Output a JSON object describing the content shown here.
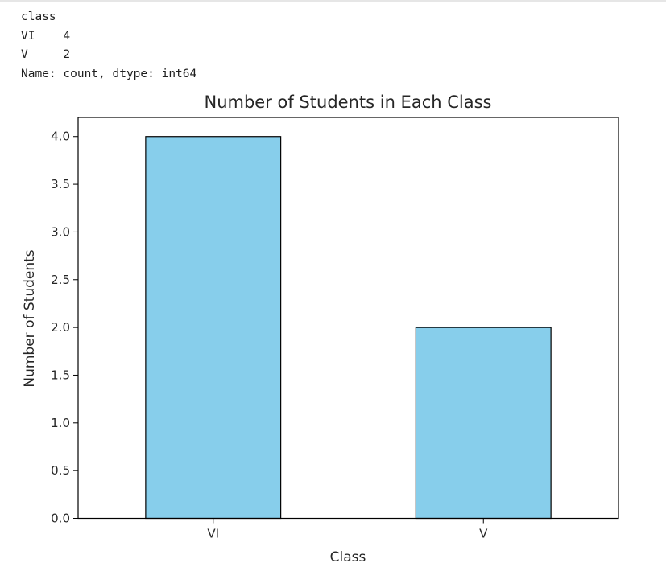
{
  "output": {
    "lines": [
      "class",
      "VI    4",
      "V     2",
      "Name: count, dtype: int64"
    ]
  },
  "chart_data": {
    "type": "bar",
    "title": "Number of Students in Each Class",
    "xlabel": "Class",
    "ylabel": "Number of Students",
    "categories": [
      "VI",
      "V"
    ],
    "values": [
      4,
      2
    ],
    "ylim": [
      0,
      4.2
    ],
    "yticks": [
      "0.0",
      "0.5",
      "1.0",
      "1.5",
      "2.0",
      "2.5",
      "3.0",
      "3.5",
      "4.0"
    ],
    "bar_color": "#87ceeb",
    "edge_color": "#000000",
    "grid": false,
    "legend": "none"
  }
}
